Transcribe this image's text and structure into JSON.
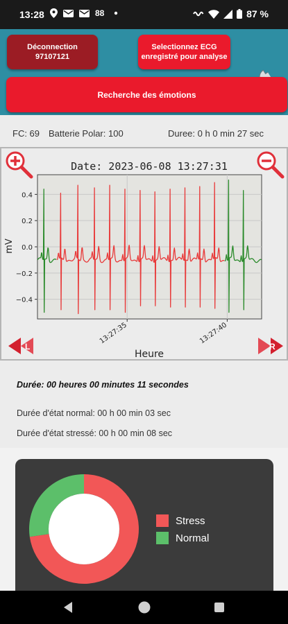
{
  "status_bar": {
    "time": "13:28",
    "badge_text": "88",
    "battery_text": "87 %",
    "icons": [
      "location-icon",
      "mail-icon",
      "mail-icon",
      "dot-icon",
      "vibrate-icon",
      "wifi-icon",
      "signal-icon",
      "battery-icon"
    ]
  },
  "header": {
    "logout_button": {
      "line1": "Déconnection",
      "line2": "97107121"
    },
    "select_ecg_button": {
      "line1": "Selectionnez ECG",
      "line2": "enregistré pour analyse"
    },
    "emotion_button": "Recherche des émotions",
    "settings_icon": "wrench-icon"
  },
  "info": {
    "fc": "FC: 69",
    "battery": "Batterie Polar: 100",
    "duration": "Duree: 0 h 0 min 27 sec"
  },
  "chart_data": {
    "type": "line",
    "title": "Date: 2023-06-08 13:27:31",
    "xlabel": "Heure",
    "ylabel": "mV",
    "ylim": [
      -0.55,
      0.55
    ],
    "yticks": [
      0.4,
      0.2,
      0.0,
      -0.2,
      -0.4
    ],
    "ytick_labels": [
      "0.4",
      "0.2",
      "0.0",
      "−0.2",
      "−0.4"
    ],
    "xticks": [
      {
        "t": 4.48,
        "label": "13:27:35"
      },
      {
        "t": 9.48,
        "label": "13:27:40"
      }
    ],
    "xlim": [
      0,
      11.2
    ],
    "grid": true,
    "colors": {
      "stress": "#e83a3a",
      "normal": "#2a8a2a"
    },
    "beats": [
      {
        "t": 0.33,
        "peak": 0.44,
        "trough": -0.5,
        "state": "normal"
      },
      {
        "t": 1.17,
        "peak": 0.41,
        "trough": -0.48,
        "state": "stress"
      },
      {
        "t": 2.03,
        "peak": 0.47,
        "trough": -0.51,
        "state": "stress"
      },
      {
        "t": 2.86,
        "peak": 0.45,
        "trough": -0.48,
        "state": "stress"
      },
      {
        "t": 3.62,
        "peak": 0.47,
        "trough": -0.48,
        "state": "stress"
      },
      {
        "t": 4.38,
        "peak": 0.44,
        "trough": -0.5,
        "state": "stress"
      },
      {
        "t": 5.14,
        "peak": 0.43,
        "trough": -0.45,
        "state": "stress"
      },
      {
        "t": 5.88,
        "peak": 0.42,
        "trough": -0.45,
        "state": "stress"
      },
      {
        "t": 6.64,
        "peak": 0.44,
        "trough": -0.46,
        "state": "stress"
      },
      {
        "t": 7.38,
        "peak": 0.45,
        "trough": -0.46,
        "state": "stress"
      },
      {
        "t": 8.12,
        "peak": 0.46,
        "trough": -0.46,
        "state": "stress"
      },
      {
        "t": 8.86,
        "peak": 0.49,
        "trough": -0.47,
        "state": "stress"
      },
      {
        "t": 9.56,
        "peak": 0.51,
        "trough": -0.5,
        "state": "normal"
      },
      {
        "t": 10.3,
        "peak": 0.43,
        "trough": -0.48,
        "state": "normal"
      }
    ],
    "segments": [
      {
        "start": 0,
        "end": 0.95,
        "state": "normal"
      },
      {
        "start": 0.95,
        "end": 9.35,
        "state": "stress"
      },
      {
        "start": 9.35,
        "end": 11.2,
        "state": "normal"
      }
    ]
  },
  "chart_controls": {
    "zoom_in": "zoom-in-icon",
    "zoom_out": "zoom-out-icon",
    "left_label": "L",
    "right_label": "R"
  },
  "durations": {
    "total": "Durée: 00 heures 00 minutes 11 secondes",
    "normal": "Durée d'état normal: 00 h 00 min 03 sec",
    "stress": "Durée d'état stressé: 00 h 00 min 08 sec"
  },
  "pie": {
    "type": "pie",
    "slices": [
      {
        "label": "Stress",
        "value": 8,
        "color": "#f25757"
      },
      {
        "label": "Normal",
        "value": 3,
        "color": "#5cbf6a"
      }
    ]
  },
  "nav": {
    "back": "back-icon",
    "home": "home-icon",
    "recents": "recents-icon"
  }
}
